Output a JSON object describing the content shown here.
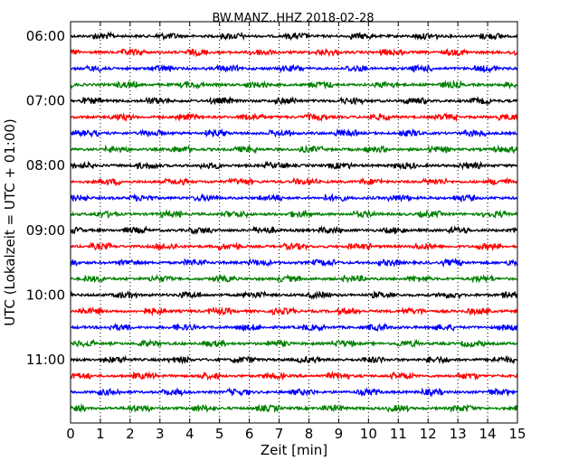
{
  "chart_data": {
    "type": "line",
    "title": "BW.MANZ..HHZ 2018-02-28",
    "xlabel": "Zeit  [min]",
    "ylabel": "UTC (Lokalzeit = UTC + 01:00)",
    "xlim": [
      0,
      15
    ],
    "x_ticks": [
      "0",
      "1",
      "2",
      "3",
      "4",
      "5",
      "6",
      "7",
      "8",
      "9",
      "10",
      "11",
      "12",
      "13",
      "14",
      "15"
    ],
    "y_ticks": [
      "06:00",
      "07:00",
      "08:00",
      "09:00",
      "10:00",
      "11:00"
    ],
    "grid": "vertical dotted lines at each minute",
    "trace_interval_min": 15,
    "trace_colors": [
      "#000000",
      "#ff0000",
      "#0000ff",
      "#008000"
    ],
    "traces": [
      {
        "start": "06:00",
        "color": "#000000"
      },
      {
        "start": "06:15",
        "color": "#ff0000"
      },
      {
        "start": "06:30",
        "color": "#0000ff"
      },
      {
        "start": "06:45",
        "color": "#008000"
      },
      {
        "start": "07:00",
        "color": "#000000"
      },
      {
        "start": "07:15",
        "color": "#ff0000"
      },
      {
        "start": "07:30",
        "color": "#0000ff"
      },
      {
        "start": "07:45",
        "color": "#008000"
      },
      {
        "start": "08:00",
        "color": "#000000"
      },
      {
        "start": "08:15",
        "color": "#ff0000"
      },
      {
        "start": "08:30",
        "color": "#0000ff"
      },
      {
        "start": "08:45",
        "color": "#008000"
      },
      {
        "start": "09:00",
        "color": "#000000"
      },
      {
        "start": "09:15",
        "color": "#ff0000"
      },
      {
        "start": "09:30",
        "color": "#0000ff"
      },
      {
        "start": "09:45",
        "color": "#008000"
      },
      {
        "start": "10:00",
        "color": "#000000"
      },
      {
        "start": "10:15",
        "color": "#ff0000"
      },
      {
        "start": "10:30",
        "color": "#0000ff"
      },
      {
        "start": "10:45",
        "color": "#008000"
      },
      {
        "start": "11:00",
        "color": "#000000"
      },
      {
        "start": "11:15",
        "color": "#ff0000"
      },
      {
        "start": "11:30",
        "color": "#0000ff"
      },
      {
        "start": "11:45",
        "color": "#008000"
      }
    ]
  }
}
